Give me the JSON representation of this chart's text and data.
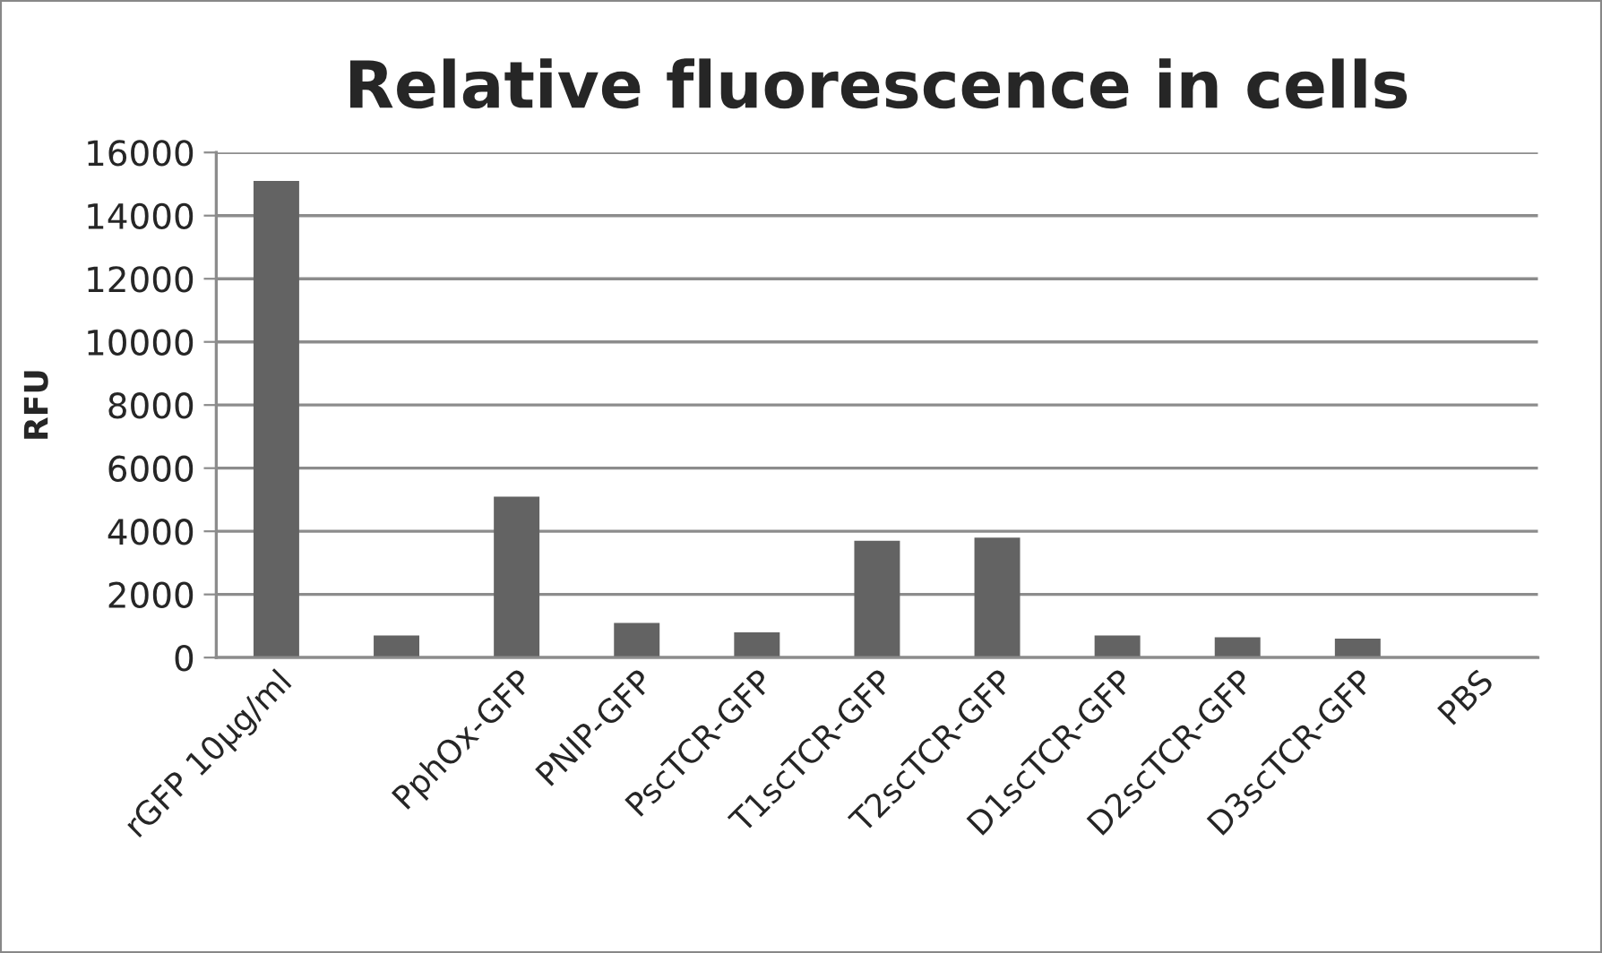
{
  "chart_data": {
    "type": "bar",
    "title": "Relative fluorescence in cells",
    "ylabel": "RFU",
    "categories": [
      "rGFP 10µg/ml",
      null,
      "PphOx-GFP",
      "PNIP-GFP",
      "PscTCR-GFP",
      "T1scTCR-GFP",
      "T2scTCR-GFP",
      "D1scTCR-GFP",
      "D2scTCR-GFP",
      "D3scTCR-GFP",
      "PBS"
    ],
    "values": [
      15100,
      700,
      5100,
      1100,
      800,
      3700,
      3800,
      700,
      640,
      600,
      0
    ],
    "color": "#636363",
    "ylim": [
      0,
      16000
    ],
    "yticks": [
      0,
      2000,
      4000,
      6000,
      8000,
      10000,
      12000,
      14000,
      16000
    ],
    "grid": "y"
  }
}
